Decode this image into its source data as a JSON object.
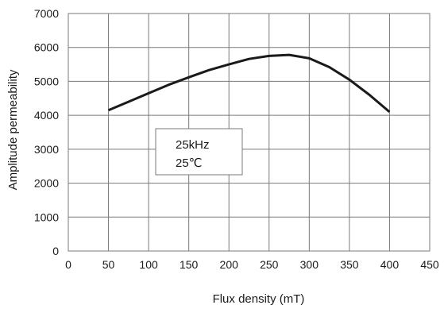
{
  "chart_data": {
    "type": "line",
    "title": "",
    "xlabel": "Flux density (mT)",
    "ylabel": "Amplitude permeability",
    "xlim": [
      0,
      450
    ],
    "ylim": [
      0,
      7000
    ],
    "x_ticks": [
      0,
      50,
      100,
      150,
      200,
      250,
      300,
      350,
      400,
      450
    ],
    "y_ticks": [
      0,
      1000,
      2000,
      3000,
      4000,
      5000,
      6000,
      7000
    ],
    "grid": true,
    "legend": "none",
    "annotation": {
      "lines": [
        "25kHz",
        "25℃"
      ],
      "position": "upper-left-inside"
    },
    "series": [
      {
        "x": [
          50,
          75,
          100,
          125,
          150,
          175,
          200,
          225,
          250,
          275,
          300,
          325,
          350,
          375,
          400
        ],
        "y": [
          4150,
          4400,
          4650,
          4900,
          5120,
          5330,
          5500,
          5660,
          5750,
          5780,
          5680,
          5420,
          5050,
          4600,
          4100
        ]
      }
    ],
    "colors": {
      "line": "#1a1a1a",
      "grid": "#7a7a7a",
      "frame": "#7a7a7a",
      "text": "#1a1a1a"
    }
  }
}
